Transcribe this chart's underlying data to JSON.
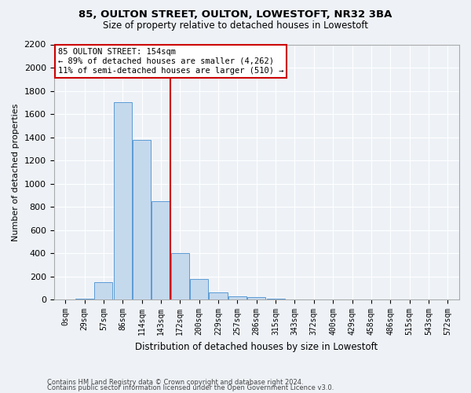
{
  "title1": "85, OULTON STREET, OULTON, LOWESTOFT, NR32 3BA",
  "title2": "Size of property relative to detached houses in Lowestoft",
  "xlabel": "Distribution of detached houses by size in Lowestoft",
  "ylabel": "Number of detached properties",
  "bar_color": "#c5d9ed",
  "bar_edge_color": "#5b9bd5",
  "categories": [
    "0sqm",
    "29sqm",
    "57sqm",
    "86sqm",
    "114sqm",
    "143sqm",
    "172sqm",
    "200sqm",
    "229sqm",
    "257sqm",
    "286sqm",
    "315sqm",
    "343sqm",
    "372sqm",
    "400sqm",
    "429sqm",
    "458sqm",
    "486sqm",
    "515sqm",
    "543sqm",
    "572sqm"
  ],
  "values": [
    0,
    5,
    150,
    1700,
    1380,
    850,
    400,
    175,
    65,
    30,
    25,
    5,
    2,
    0,
    0,
    0,
    0,
    0,
    0,
    0,
    0
  ],
  "ylim": [
    0,
    2200
  ],
  "yticks": [
    0,
    200,
    400,
    600,
    800,
    1000,
    1200,
    1400,
    1600,
    1800,
    2000,
    2200
  ],
  "vline_x": 5.5,
  "annotation_text": "85 OULTON STREET: 154sqm\n← 89% of detached houses are smaller (4,262)\n11% of semi-detached houses are larger (510) →",
  "annotation_box_color": "#ffffff",
  "annotation_box_edge": "#cc0000",
  "vline_color": "#cc0000",
  "footer1": "Contains HM Land Registry data © Crown copyright and database right 2024.",
  "footer2": "Contains public sector information licensed under the Open Government Licence v3.0.",
  "background_color": "#eef2f7",
  "plot_bg_color": "#eef2f7",
  "grid_color": "#ffffff",
  "title1_fontsize": 9.5,
  "title2_fontsize": 8.5,
  "ylabel_fontsize": 8,
  "xlabel_fontsize": 8.5,
  "tick_fontsize": 7,
  "ann_fontsize": 7.5,
  "footer_fontsize": 6
}
